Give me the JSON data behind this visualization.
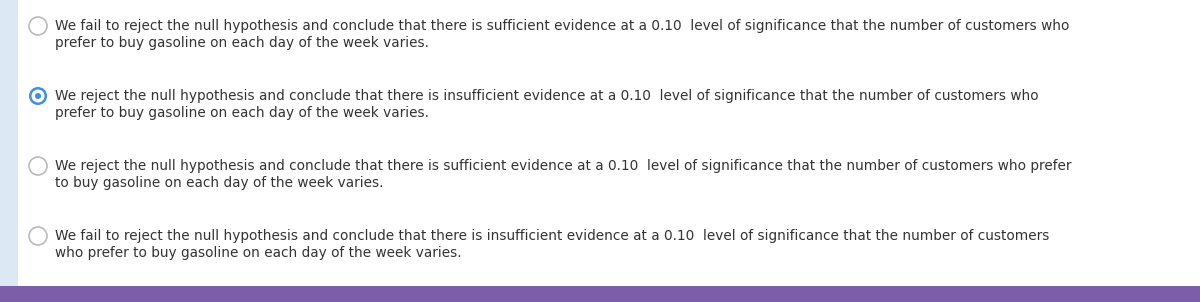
{
  "background_color": "#ffffff",
  "bottom_bar_color": "#7b5ea7",
  "options": [
    {
      "text_lines": [
        "We fail to reject the null hypothesis and conclude that there is sufficient evidence at a 0.10  level of significance that the number of customers who",
        "prefer to buy gasoline on each day of the week varies."
      ],
      "selected": false
    },
    {
      "text_lines": [
        "We reject the null hypothesis and conclude that there is insufficient evidence at a 0.10  level of significance that the number of customers who",
        "prefer to buy gasoline on each day of the week varies."
      ],
      "selected": true
    },
    {
      "text_lines": [
        "We reject the null hypothesis and conclude that there is sufficient evidence at a 0.10  level of significance that the number of customers who prefer",
        "to buy gasoline on each day of the week varies."
      ],
      "selected": false
    },
    {
      "text_lines": [
        "We fail to reject the null hypothesis and conclude that there is insufficient evidence at a 0.10  level of significance that the number of customers",
        "who prefer to buy gasoline on each day of the week varies."
      ],
      "selected": false
    }
  ],
  "text_color": "#333333",
  "font_size": 9.8,
  "radio_border_color": "#bbbbbb",
  "radio_selected_color": "#3d8fe0",
  "left_bar_color": "#dde8f5",
  "left_bar_width": 18
}
